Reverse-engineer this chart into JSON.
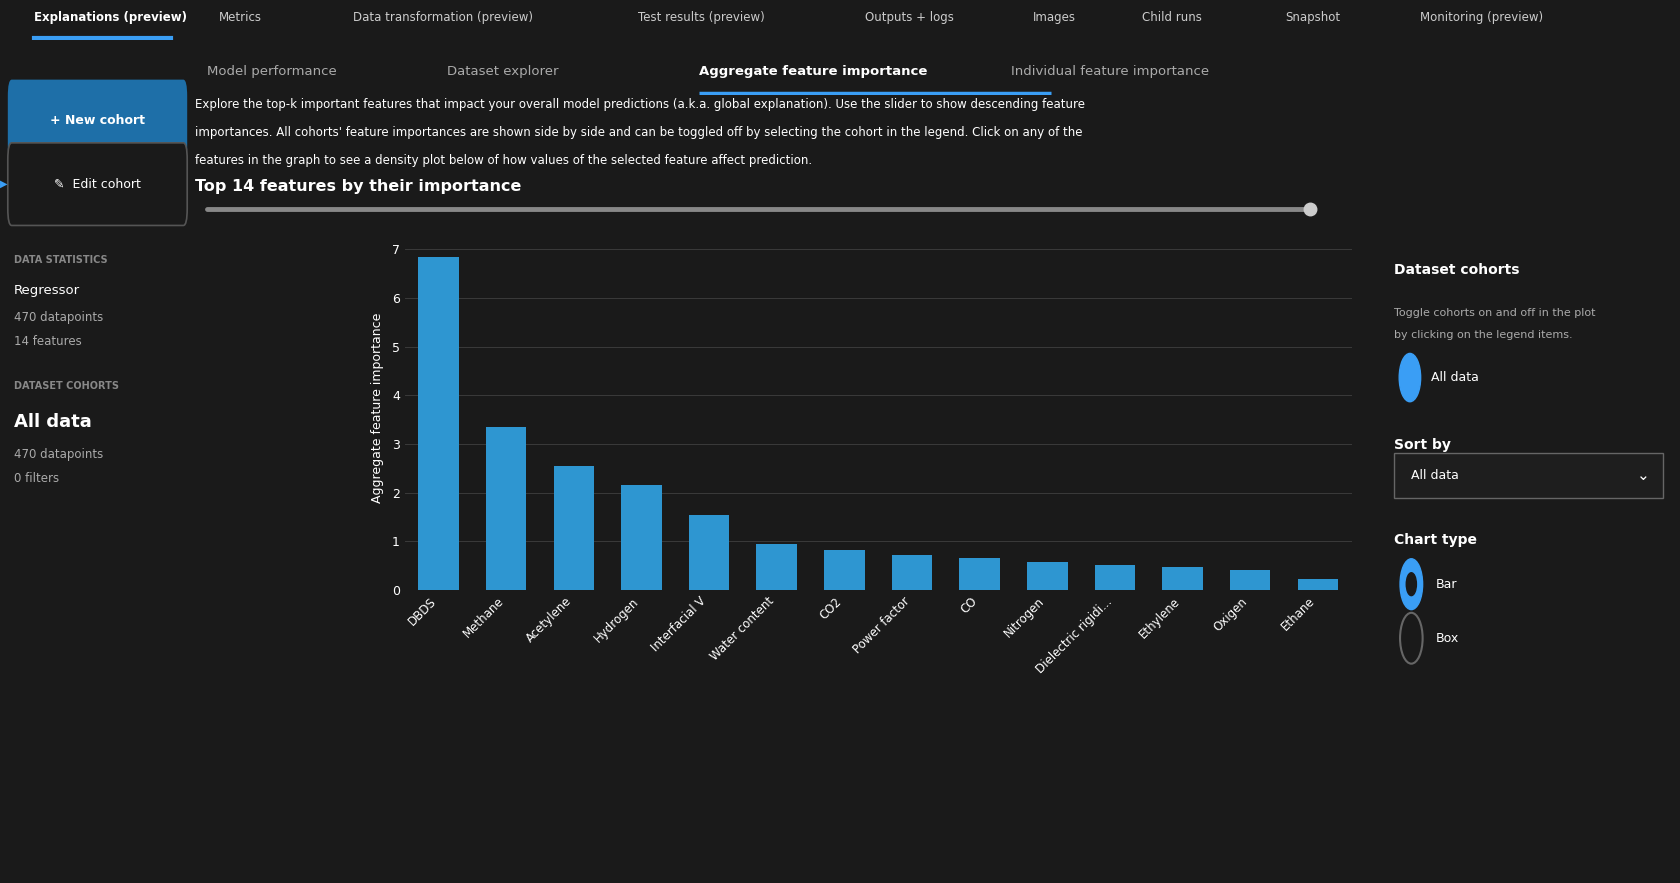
{
  "title": "Top 14 features by their importance",
  "features": [
    "DBDS",
    "Methane",
    "Acetylene",
    "Hydrogen",
    "Interfacial V",
    "Water content",
    "CO2",
    "Power factor",
    "CO",
    "Nitrogen",
    "Dielectric rigidi...",
    "Ethylene",
    "Oxigen",
    "Ethane"
  ],
  "values": [
    6.85,
    3.35,
    2.55,
    2.15,
    1.55,
    0.95,
    0.82,
    0.72,
    0.65,
    0.58,
    0.52,
    0.47,
    0.42,
    0.22
  ],
  "bar_color": "#2e96d1",
  "background_color": "#1a1a1a",
  "plot_bg_color": "#1a1a1a",
  "text_color": "#ffffff",
  "dim_text_color": "#aaaaaa",
  "grid_color": "#3a3a3a",
  "ylabel": "Aggregate feature importance",
  "ylim": [
    0,
    7.5
  ],
  "yticks": [
    0,
    1,
    2,
    3,
    4,
    5,
    6,
    7
  ],
  "tab_labels": [
    "Explanations (preview)",
    "Metrics",
    "Data transformation (preview)",
    "Test results (preview)",
    "Outputs + logs",
    "Images",
    "Child runs",
    "Snapshot",
    "Monitoring (preview)"
  ],
  "active_tab": "Explanations (preview)",
  "sub_tabs": [
    "Model performance",
    "Dataset explorer",
    "Aggregate feature importance",
    "Individual feature importance"
  ],
  "active_sub_tab": "Aggregate feature importance",
  "left_panel_title": "DATA STATISTICS",
  "left_panel_type": "Regressor",
  "left_panel_datapoints": "470 datapoints",
  "left_panel_features": "14 features",
  "left_panel_cohorts_title": "DATASET COHORTS",
  "left_panel_cohorts_name": "All data",
  "left_panel_cohorts_dp": "470 datapoints",
  "left_panel_cohorts_filters": "0 filters",
  "desc_line1": "Explore the top-k important features that impact your overall model predictions (a.k.a. global explanation). Use the slider to show descending feature",
  "desc_line2": "importances. All cohorts' feature importances are shown side by side and can be toggled off by selecting the cohort in the legend. Click on any of the",
  "desc_line3": "features in the graph to see a density plot below of how values of the selected feature affect prediction.",
  "right_cohorts_title": "Dataset cohorts",
  "right_all_data_label": "All data",
  "right_sort_label": "Sort by",
  "right_sort_value": "All data",
  "right_chart_type": "Chart type",
  "right_bar_label": "Bar",
  "right_box_label": "Box",
  "new_cohort_btn": "+ New cohort",
  "edit_cohort_btn": "Edit cohort",
  "slider_color": "#888888",
  "slider_handle_color": "#cccccc",
  "active_tab_underline": "#3a9ef5",
  "btn_fill_color": "#1e6fa8",
  "nav_bg": "#111111",
  "separator_color": "#555555"
}
